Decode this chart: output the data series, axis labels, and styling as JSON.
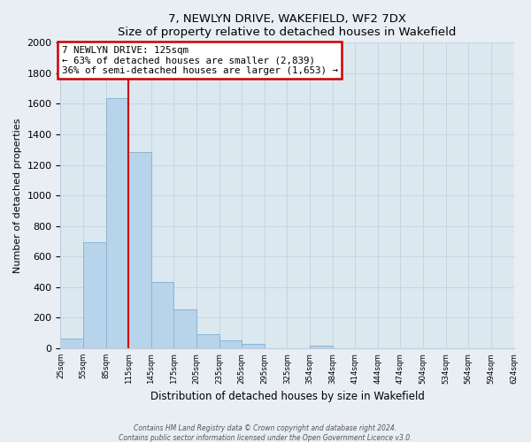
{
  "title": "7, NEWLYN DRIVE, WAKEFIELD, WF2 7DX",
  "subtitle": "Size of property relative to detached houses in Wakefield",
  "xlabel": "Distribution of detached houses by size in Wakefield",
  "ylabel": "Number of detached properties",
  "bar_values": [
    65,
    695,
    1635,
    1285,
    435,
    255,
    90,
    52,
    28,
    0,
    0,
    15,
    0,
    0,
    0,
    0,
    0,
    0,
    0,
    0
  ],
  "bar_labels": [
    "25sqm",
    "55sqm",
    "85sqm",
    "115sqm",
    "145sqm",
    "175sqm",
    "205sqm",
    "235sqm",
    "265sqm",
    "295sqm",
    "325sqm",
    "354sqm",
    "384sqm",
    "414sqm",
    "444sqm",
    "474sqm",
    "504sqm",
    "534sqm",
    "564sqm",
    "594sqm",
    "624sqm"
  ],
  "bar_color": "#b8d4ea",
  "bar_edge_color": "#8ab4d4",
  "property_line_label": "7 NEWLYN DRIVE: 125sqm",
  "annotation_smaller": "← 63% of detached houses are smaller (2,839)",
  "annotation_larger": "36% of semi-detached houses are larger (1,653) →",
  "annotation_box_color": "#ffffff",
  "annotation_box_edge": "#cc0000",
  "ylim": [
    0,
    2000
  ],
  "yticks": [
    0,
    200,
    400,
    600,
    800,
    1000,
    1200,
    1400,
    1600,
    1800,
    2000
  ],
  "footer1": "Contains HM Land Registry data © Crown copyright and database right 2024.",
  "footer2": "Contains public sector information licensed under the Open Government Licence v3.0.",
  "bg_color": "#e8eef4",
  "plot_bg_color": "#dce8f0"
}
